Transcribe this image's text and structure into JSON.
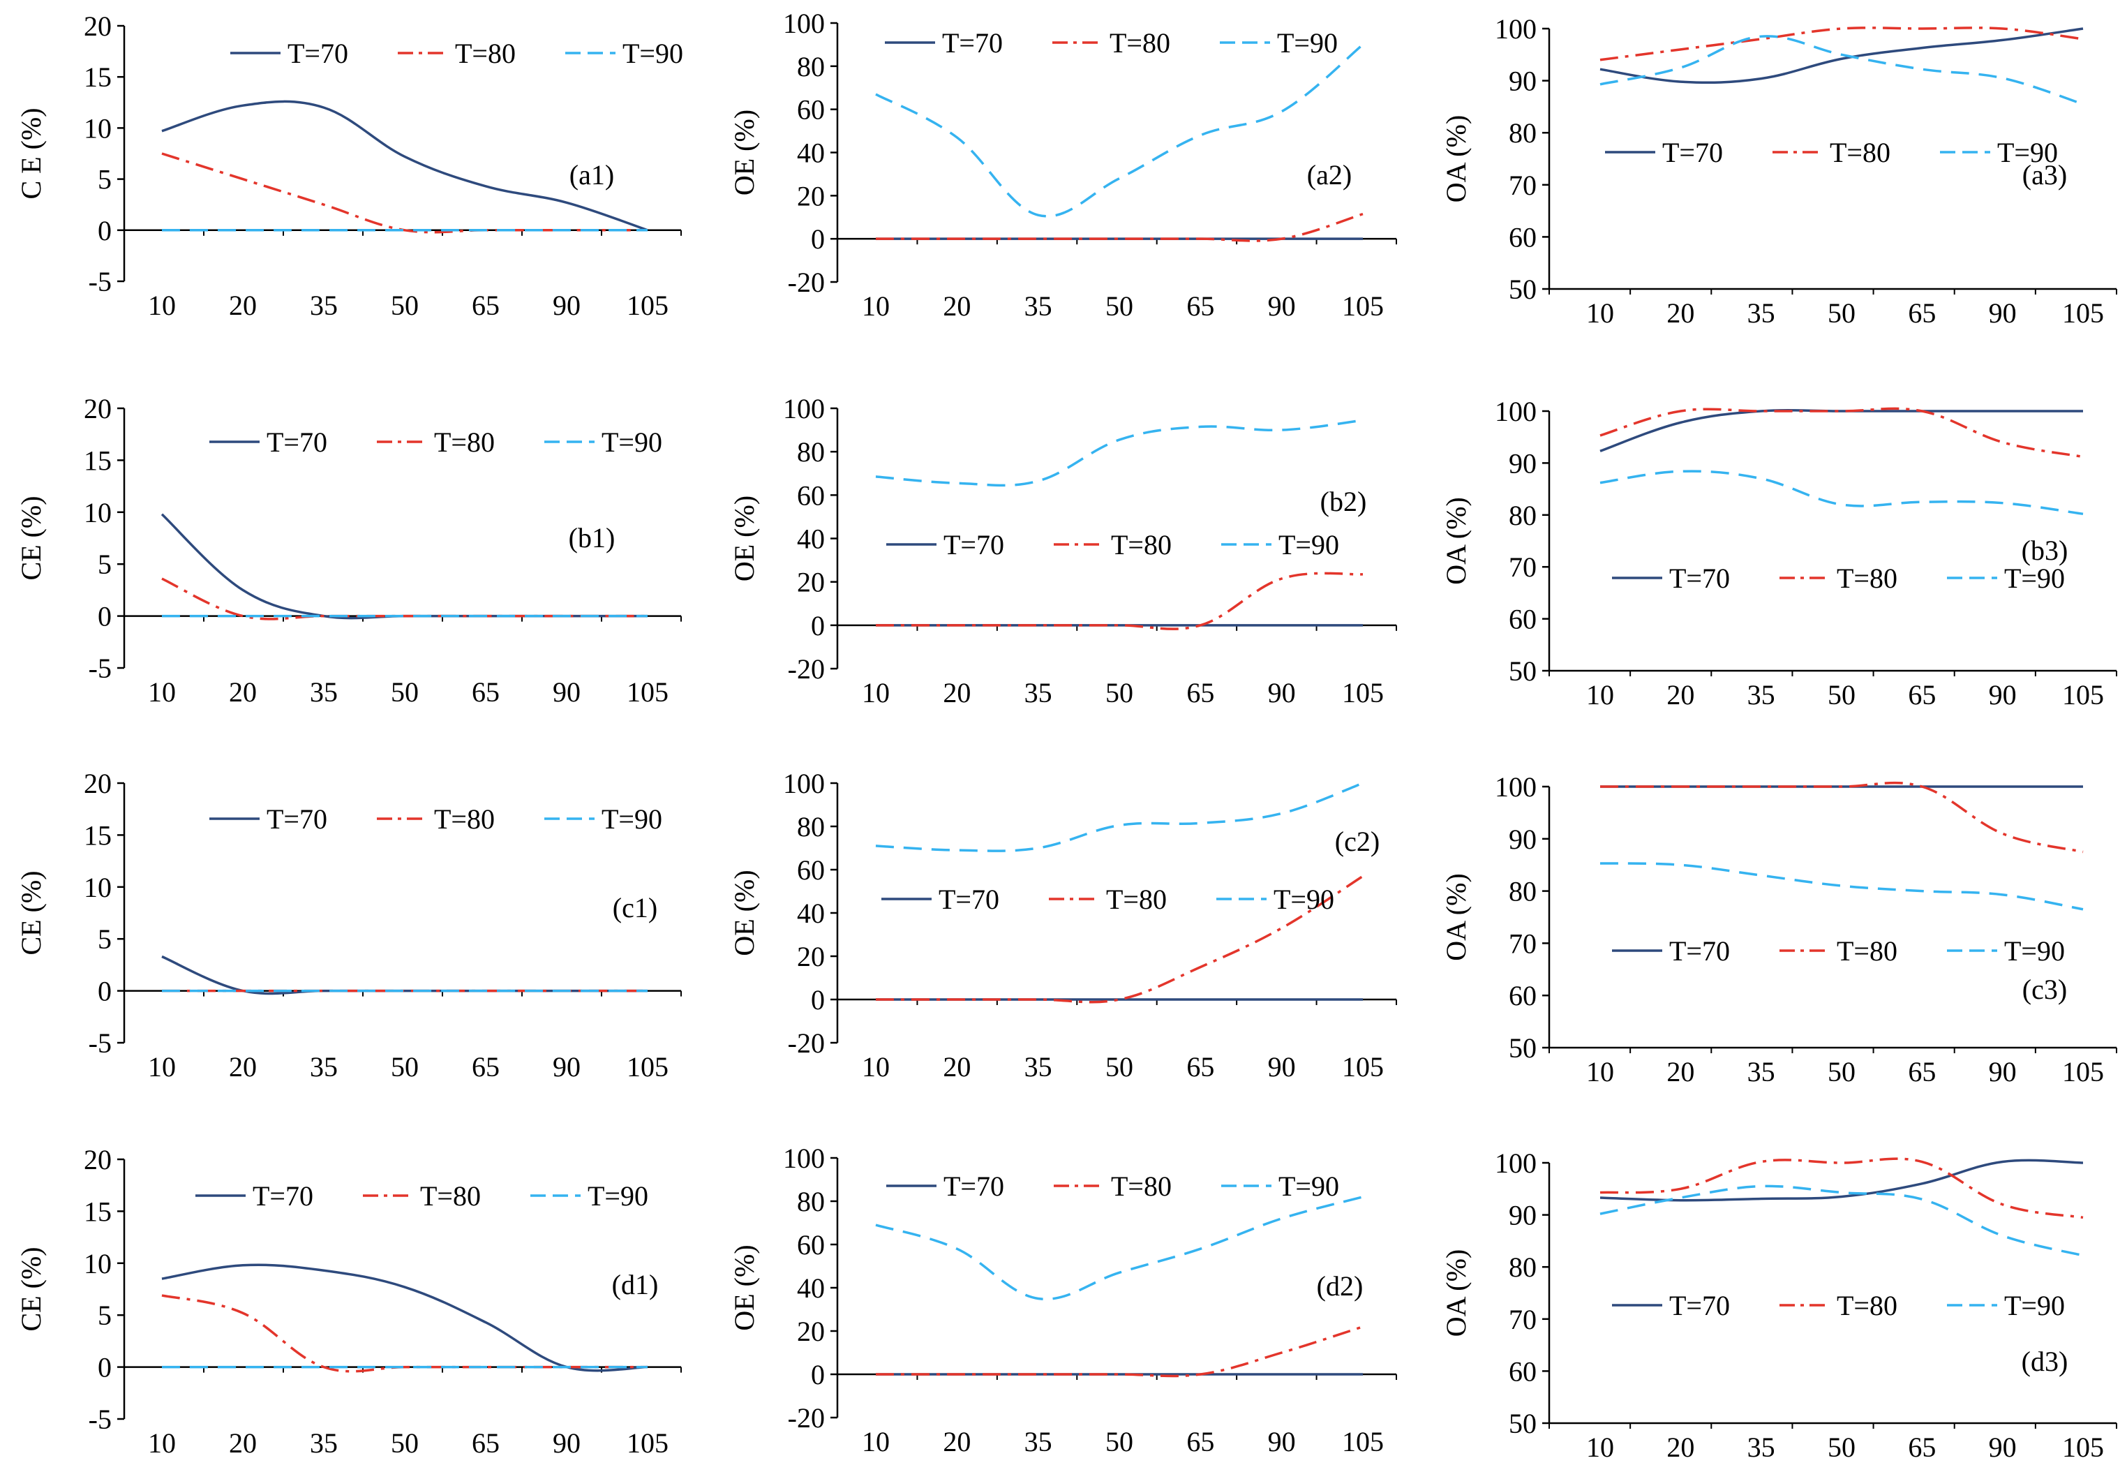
{
  "figure": {
    "x_categories": [
      "10",
      "20",
      "35",
      "50",
      "65",
      "90",
      "105"
    ]
  },
  "chart_data": [
    {
      "id": "a1",
      "type": "line",
      "panel_label": "(a1)",
      "ylabel": "C E  (%)",
      "ylim": [
        -5,
        20
      ],
      "yticks": [
        -5,
        0,
        5,
        10,
        15,
        20
      ],
      "categories": [
        "10",
        "20",
        "35",
        "50",
        "65",
        "90",
        "105"
      ],
      "legend_position": "top",
      "series": [
        {
          "name": "T=70",
          "color": "#2e4a7d",
          "dash": "solid",
          "values": [
            9.7,
            12.2,
            12.0,
            7.2,
            4.3,
            2.7,
            0.0
          ]
        },
        {
          "name": "T=80",
          "color": "#e3352b",
          "dash": "dashdot",
          "values": [
            7.5,
            5.0,
            2.5,
            0.0,
            0.0,
            0.0,
            0.0
          ]
        },
        {
          "name": "T=90",
          "color": "#35b3f0",
          "dash": "dashed",
          "values": [
            0,
            0,
            0,
            0,
            0,
            0,
            0
          ]
        }
      ]
    },
    {
      "id": "a2",
      "type": "line",
      "panel_label": "(a2)",
      "ylabel": "OE  (%)",
      "ylim": [
        -20,
        100
      ],
      "yticks": [
        -20,
        0,
        20,
        40,
        60,
        80,
        100
      ],
      "categories": [
        "10",
        "20",
        "35",
        "50",
        "65",
        "90",
        "105"
      ],
      "legend_position": "top",
      "series": [
        {
          "name": "T=70",
          "color": "#2e4a7d",
          "dash": "solid",
          "values": [
            0,
            0,
            0,
            0,
            0,
            0,
            0
          ]
        },
        {
          "name": "T=80",
          "color": "#e3352b",
          "dash": "dashdot",
          "values": [
            0,
            0,
            0,
            0,
            0,
            0,
            11.5
          ]
        },
        {
          "name": "T=90",
          "color": "#35b3f0",
          "dash": "dashed",
          "values": [
            67,
            47,
            11,
            28,
            48,
            59,
            90
          ]
        }
      ]
    },
    {
      "id": "a3",
      "type": "line",
      "panel_label": "(a3)",
      "ylabel": "OA  (%)",
      "ylim": [
        50,
        100
      ],
      "yticks": [
        50,
        60,
        70,
        80,
        90,
        100
      ],
      "categories": [
        "10",
        "20",
        "35",
        "50",
        "65",
        "90",
        "105"
      ],
      "legend_position": "center",
      "series": [
        {
          "name": "T=70",
          "color": "#2e4a7d",
          "dash": "solid",
          "values": [
            92.2,
            89.8,
            90.4,
            94.2,
            96.3,
            97.8,
            100.0
          ]
        },
        {
          "name": "T=80",
          "color": "#e3352b",
          "dash": "dashdot",
          "values": [
            94.0,
            96.0,
            98.0,
            100.0,
            100.0,
            100.0,
            98.0
          ]
        },
        {
          "name": "T=90",
          "color": "#35b3f0",
          "dash": "dashed",
          "values": [
            89.3,
            92.5,
            98.5,
            95.0,
            92.2,
            90.5,
            85.5
          ]
        }
      ]
    },
    {
      "id": "b1",
      "type": "line",
      "panel_label": "(b1)",
      "ylabel": "CE (%)",
      "ylim": [
        -5,
        20
      ],
      "yticks": [
        -5,
        0,
        5,
        10,
        15,
        20
      ],
      "categories": [
        "10",
        "20",
        "35",
        "50",
        "65",
        "90",
        "105"
      ],
      "legend_position": "top",
      "series": [
        {
          "name": "T=70",
          "color": "#2e4a7d",
          "dash": "solid",
          "values": [
            9.8,
            2.5,
            0.0,
            0.0,
            0.0,
            0.0,
            0.0
          ]
        },
        {
          "name": "T=80",
          "color": "#e3352b",
          "dash": "dashdot",
          "values": [
            3.6,
            0.0,
            0.0,
            0.0,
            0.0,
            0.0,
            0.0
          ]
        },
        {
          "name": "T=90",
          "color": "#35b3f0",
          "dash": "dashed",
          "values": [
            0,
            0,
            0,
            0,
            0,
            0,
            0
          ]
        }
      ]
    },
    {
      "id": "b2",
      "type": "line",
      "panel_label": "(b2)",
      "ylabel": "OE (%)",
      "ylim": [
        -20,
        100
      ],
      "yticks": [
        -20,
        0,
        20,
        40,
        60,
        80,
        100
      ],
      "categories": [
        "10",
        "20",
        "35",
        "50",
        "65",
        "90",
        "105"
      ],
      "legend_position": "center",
      "series": [
        {
          "name": "T=70",
          "color": "#2e4a7d",
          "dash": "solid",
          "values": [
            0,
            0,
            0,
            0,
            0,
            0,
            0
          ]
        },
        {
          "name": "T=80",
          "color": "#e3352b",
          "dash": "dashdot",
          "values": [
            0,
            0,
            0,
            0,
            0,
            21.5,
            23.5
          ]
        },
        {
          "name": "T=90",
          "color": "#35b3f0",
          "dash": "dashed",
          "values": [
            68.5,
            65.5,
            66.5,
            85.5,
            91.5,
            90.0,
            94.5
          ]
        }
      ]
    },
    {
      "id": "b3",
      "type": "line",
      "panel_label": "(b3)",
      "ylabel": "OA (%)",
      "ylim": [
        50,
        100
      ],
      "yticks": [
        50,
        60,
        70,
        80,
        90,
        100
      ],
      "categories": [
        "10",
        "20",
        "35",
        "50",
        "65",
        "90",
        "105"
      ],
      "legend_position": "bottom",
      "series": [
        {
          "name": "T=70",
          "color": "#2e4a7d",
          "dash": "solid",
          "values": [
            92.3,
            97.8,
            100.0,
            100.0,
            100.0,
            100.0,
            100.0
          ]
        },
        {
          "name": "T=80",
          "color": "#e3352b",
          "dash": "dashdot",
          "values": [
            95.3,
            100.0,
            100.0,
            100.0,
            100.0,
            94.0,
            91.2
          ]
        },
        {
          "name": "T=90",
          "color": "#35b3f0",
          "dash": "dashed",
          "values": [
            86.2,
            88.4,
            87.0,
            82.0,
            82.5,
            82.3,
            80.2
          ]
        }
      ]
    },
    {
      "id": "c1",
      "type": "line",
      "panel_label": "(c1)",
      "ylabel": "CE (%)",
      "ylim": [
        -5,
        20
      ],
      "yticks": [
        -5,
        0,
        5,
        10,
        15,
        20
      ],
      "categories": [
        "10",
        "20",
        "35",
        "50",
        "65",
        "90",
        "105"
      ],
      "legend_position": "top",
      "series": [
        {
          "name": "T=70",
          "color": "#2e4a7d",
          "dash": "solid",
          "values": [
            3.3,
            0.0,
            0.0,
            0.0,
            0.0,
            0.0,
            0.0
          ]
        },
        {
          "name": "T=80",
          "color": "#e3352b",
          "dash": "dashdot",
          "values": [
            0,
            0,
            0,
            0,
            0,
            0,
            0
          ]
        },
        {
          "name": "T=90",
          "color": "#35b3f0",
          "dash": "dashed",
          "values": [
            0,
            0,
            0,
            0,
            0,
            0,
            0
          ]
        }
      ]
    },
    {
      "id": "c2",
      "type": "line",
      "panel_label": "(c2)",
      "ylabel": "OE (%)",
      "ylim": [
        -20,
        100
      ],
      "yticks": [
        -20,
        0,
        20,
        40,
        60,
        80,
        100
      ],
      "categories": [
        "10",
        "20",
        "35",
        "50",
        "65",
        "90",
        "105"
      ],
      "legend_position": "center",
      "series": [
        {
          "name": "T=70",
          "color": "#2e4a7d",
          "dash": "solid",
          "values": [
            0,
            0,
            0,
            0,
            0,
            0,
            0
          ]
        },
        {
          "name": "T=80",
          "color": "#e3352b",
          "dash": "dashdot",
          "values": [
            0,
            0,
            0,
            0,
            15,
            33,
            57
          ]
        },
        {
          "name": "T=90",
          "color": "#35b3f0",
          "dash": "dashed",
          "values": [
            71,
            69,
            70,
            80.5,
            81.5,
            86,
            100
          ]
        }
      ]
    },
    {
      "id": "c3",
      "type": "line",
      "panel_label": "(c3)",
      "ylabel": "OA (%)",
      "ylim": [
        50,
        100
      ],
      "yticks": [
        50,
        60,
        70,
        80,
        90,
        100
      ],
      "categories": [
        "10",
        "20",
        "35",
        "50",
        "65",
        "90",
        "105"
      ],
      "legend_position": "center",
      "series": [
        {
          "name": "T=70",
          "color": "#2e4a7d",
          "dash": "solid",
          "values": [
            100,
            100,
            100,
            100,
            100,
            100,
            100
          ]
        },
        {
          "name": "T=80",
          "color": "#e3352b",
          "dash": "dashdot",
          "values": [
            100,
            100,
            100,
            100,
            100,
            91,
            87.5
          ]
        },
        {
          "name": "T=90",
          "color": "#35b3f0",
          "dash": "dashed",
          "values": [
            85.3,
            85,
            83,
            81,
            80,
            79.3,
            76.5
          ]
        }
      ]
    },
    {
      "id": "d1",
      "type": "line",
      "panel_label": "(d1)",
      "ylabel": "CE  (%)",
      "ylim": [
        -5,
        20
      ],
      "yticks": [
        -5,
        0,
        5,
        10,
        15,
        20
      ],
      "categories": [
        "10",
        "20",
        "35",
        "50",
        "65",
        "90",
        "105"
      ],
      "legend_position": "top",
      "series": [
        {
          "name": "T=70",
          "color": "#2e4a7d",
          "dash": "solid",
          "values": [
            8.5,
            9.8,
            9.3,
            7.7,
            4.3,
            0.0,
            0.0
          ]
        },
        {
          "name": "T=80",
          "color": "#e3352b",
          "dash": "dashdot",
          "values": [
            6.9,
            5.2,
            0.0,
            0.0,
            0.0,
            0.0,
            0.0
          ]
        },
        {
          "name": "T=90",
          "color": "#35b3f0",
          "dash": "dashed",
          "values": [
            0,
            0,
            0,
            0,
            0,
            0,
            0
          ]
        }
      ]
    },
    {
      "id": "d2",
      "type": "line",
      "panel_label": "(d2)",
      "ylabel": "OE  (%)",
      "ylim": [
        -20,
        100
      ],
      "yticks": [
        -20,
        0,
        20,
        40,
        60,
        80,
        100
      ],
      "categories": [
        "10",
        "20",
        "35",
        "50",
        "65",
        "90",
        "105"
      ],
      "legend_position": "top",
      "series": [
        {
          "name": "T=70",
          "color": "#2e4a7d",
          "dash": "solid",
          "values": [
            0,
            0,
            0,
            0,
            0,
            0,
            0
          ]
        },
        {
          "name": "T=80",
          "color": "#e3352b",
          "dash": "dashdot",
          "values": [
            0,
            0,
            0,
            0,
            0,
            10,
            22
          ]
        },
        {
          "name": "T=90",
          "color": "#35b3f0",
          "dash": "dashed",
          "values": [
            69,
            58,
            35,
            47,
            58,
            72,
            82
          ]
        }
      ]
    },
    {
      "id": "d3",
      "type": "line",
      "panel_label": "(d3)",
      "ylabel": "OA  (%)",
      "ylim": [
        50,
        100
      ],
      "yticks": [
        50,
        60,
        70,
        80,
        90,
        100
      ],
      "categories": [
        "10",
        "20",
        "35",
        "50",
        "65",
        "90",
        "105"
      ],
      "legend_position": "center",
      "series": [
        {
          "name": "T=70",
          "color": "#2e4a7d",
          "dash": "solid",
          "values": [
            93.3,
            92.8,
            93.1,
            93.5,
            96.0,
            100.2,
            100.0
          ]
        },
        {
          "name": "T=80",
          "color": "#e3352b",
          "dash": "dashdot",
          "values": [
            94.3,
            95.0,
            100.2,
            100.0,
            100.2,
            92.0,
            89.5
          ]
        },
        {
          "name": "T=90",
          "color": "#35b3f0",
          "dash": "dashed",
          "values": [
            90.2,
            93.3,
            95.5,
            94.3,
            93.0,
            86.0,
            82.2
          ]
        }
      ]
    }
  ]
}
